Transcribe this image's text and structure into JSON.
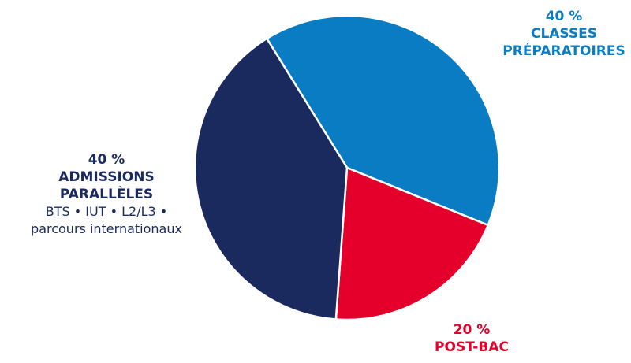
{
  "chart_data": {
    "type": "pie",
    "categories": [
      "CLASSES PRÉPARATOIRES",
      "POST-BAC",
      "ADMISSIONS PARALLÈLES"
    ],
    "values": [
      40,
      20,
      40
    ],
    "value_labels": [
      "40 %",
      "20 %",
      "40 %"
    ],
    "colors": [
      "#0a7cc4",
      "#e4002b",
      "#1b2a5e"
    ],
    "annotation": "BTS • IUT • L2/L3 • parcours internationaux"
  }
}
